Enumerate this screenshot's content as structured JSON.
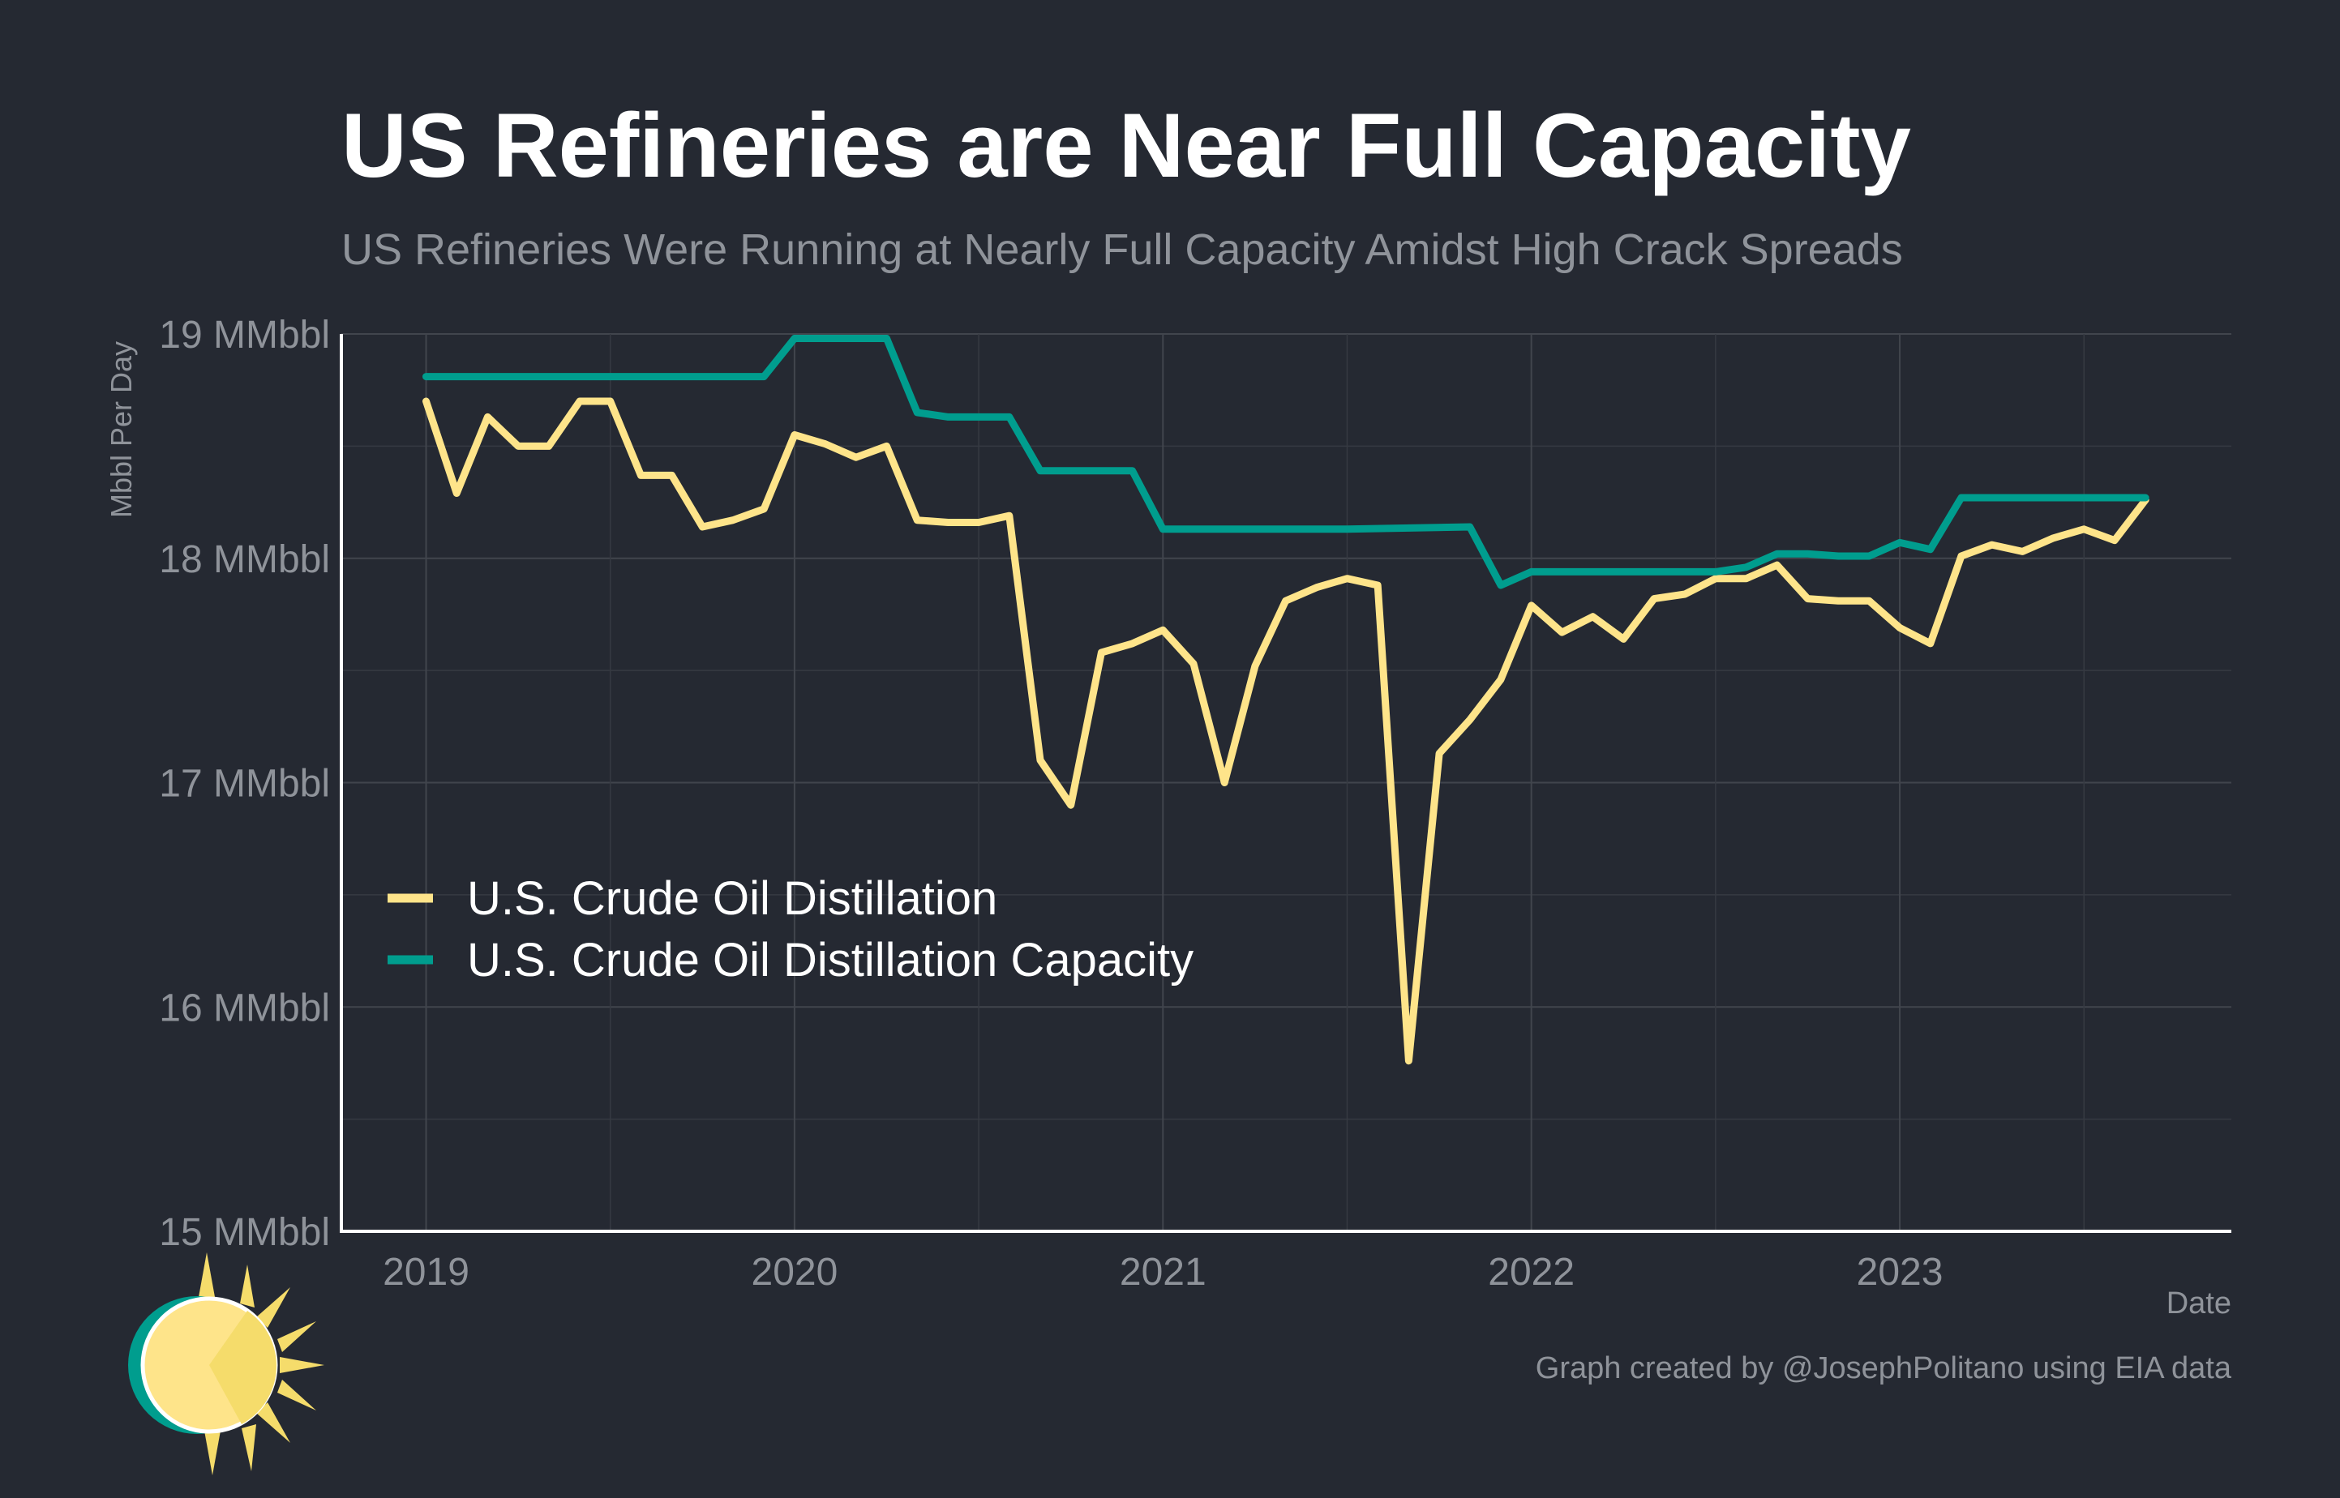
{
  "chart_data": {
    "type": "line",
    "title": "US Refineries are Near Full Capacity",
    "subtitle": "US Refineries Were Running at Nearly Full Capacity Amidst High Crack Spreads",
    "xlabel": "Date",
    "ylabel": "Mbbl Per Day",
    "caption": "Graph created by @JosephPolitano using EIA data",
    "xlim": [
      2018.77,
      2023.9
    ],
    "ylim": [
      15,
      19
    ],
    "x_ticks": [
      2019,
      2020,
      2021,
      2022,
      2023
    ],
    "x_tick_labels": [
      "2019",
      "2020",
      "2021",
      "2022",
      "2023"
    ],
    "y_ticks": [
      15,
      16,
      17,
      18,
      19
    ],
    "y_tick_labels": [
      "15 MMbbl",
      "16 MMbbl",
      "17 MMbbl",
      "18 MMbbl",
      "19 MMbbl"
    ],
    "grid": true,
    "legend_position": "left-middle",
    "series": [
      {
        "name": "U.S. Crude Oil Distillation",
        "color": "#FEE48A",
        "x": [
          2019.0,
          2019.083,
          2019.167,
          2019.25,
          2019.333,
          2019.417,
          2019.5,
          2019.583,
          2019.667,
          2019.75,
          2019.833,
          2019.917,
          2020.0,
          2020.083,
          2020.167,
          2020.25,
          2020.333,
          2020.417,
          2020.5,
          2020.583,
          2020.667,
          2020.75,
          2020.833,
          2020.917,
          2021.0,
          2021.083,
          2021.167,
          2021.25,
          2021.333,
          2021.417,
          2021.5,
          2021.583,
          2021.667,
          2021.75,
          2021.833,
          2021.917,
          2022.0,
          2022.083,
          2022.167,
          2022.25,
          2022.333,
          2022.417,
          2022.5,
          2022.583,
          2022.667,
          2022.75,
          2022.833,
          2022.917,
          2023.0,
          2023.083,
          2023.167,
          2023.25,
          2023.333,
          2023.417,
          2023.5,
          2023.583,
          2023.667
        ],
        "values": [
          18.7,
          18.29,
          18.63,
          18.5,
          18.5,
          18.7,
          18.7,
          18.37,
          18.37,
          18.14,
          18.17,
          18.22,
          18.55,
          18.51,
          18.45,
          18.5,
          18.17,
          18.16,
          18.16,
          18.19,
          17.1,
          16.9,
          17.58,
          17.62,
          17.68,
          17.53,
          17.0,
          17.52,
          17.81,
          17.87,
          17.91,
          17.88,
          15.76,
          17.13,
          17.28,
          17.46,
          17.79,
          17.67,
          17.74,
          17.64,
          17.82,
          17.84,
          17.91,
          17.91,
          17.97,
          17.82,
          17.81,
          17.81,
          17.69,
          17.62,
          18.01,
          18.06,
          18.03,
          18.09,
          18.13,
          18.08,
          18.26
        ]
      },
      {
        "name": "U.S. Crude Oil Distillation Capacity",
        "color": "#009D8E",
        "x": [
          2019.0,
          2019.917,
          2020.0,
          2020.25,
          2020.333,
          2020.417,
          2020.583,
          2020.667,
          2020.917,
          2021.0,
          2021.5,
          2021.833,
          2021.917,
          2022.0,
          2022.5,
          2022.583,
          2022.667,
          2022.75,
          2022.833,
          2022.917,
          2023.0,
          2023.083,
          2023.167,
          2023.667
        ],
        "values": [
          18.81,
          18.81,
          18.98,
          18.98,
          18.65,
          18.63,
          18.63,
          18.39,
          18.39,
          18.13,
          18.13,
          18.14,
          17.88,
          17.94,
          17.94,
          17.96,
          18.02,
          18.02,
          18.01,
          18.01,
          18.07,
          18.04,
          18.27,
          18.27
        ]
      }
    ]
  }
}
